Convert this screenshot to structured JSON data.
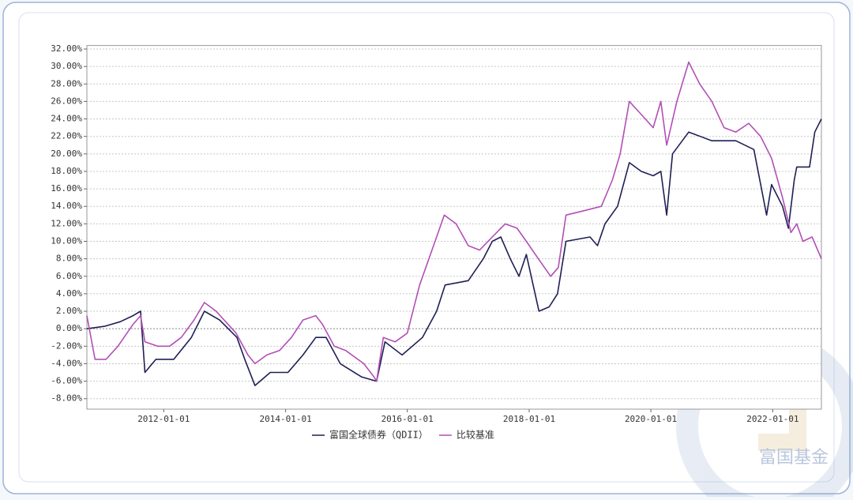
{
  "chart_data": {
    "type": "line",
    "legend": "bottom",
    "grid": true,
    "watermark": "富国基金",
    "xlim": [
      "2010-09-27",
      "2022-10-20"
    ],
    "xticks": [
      "2012-01-01",
      "2014-01-01",
      "2016-01-01",
      "2018-01-01",
      "2020-01-01",
      "2022-01-01"
    ],
    "ylim": [
      -9.2,
      32.4
    ],
    "yticks": [
      {
        "value": -8,
        "label": "-8.00%"
      },
      {
        "value": -6,
        "label": "-6.00%"
      },
      {
        "value": -4,
        "label": "-4.00%"
      },
      {
        "value": -2,
        "label": "-2.00%"
      },
      {
        "value": 0,
        "label": "0.00%"
      },
      {
        "value": 2,
        "label": "2.00%"
      },
      {
        "value": 4,
        "label": "4.00%"
      },
      {
        "value": 6,
        "label": "6.00%"
      },
      {
        "value": 8,
        "label": "8.00%"
      },
      {
        "value": 10,
        "label": "10.00%"
      },
      {
        "value": 12,
        "label": "12.00%"
      },
      {
        "value": 14,
        "label": "14.00%"
      },
      {
        "value": 16,
        "label": "16.00%"
      },
      {
        "value": 18,
        "label": "18.00%"
      },
      {
        "value": 20,
        "label": "20.00%"
      },
      {
        "value": 22,
        "label": "22.00%"
      },
      {
        "value": 24,
        "label": "24.00%"
      },
      {
        "value": 26,
        "label": "26.00%"
      },
      {
        "value": 28,
        "label": "28.00%"
      },
      {
        "value": 30,
        "label": "30.00%"
      },
      {
        "value": 32,
        "label": "32.00%"
      }
    ],
    "series": [
      {
        "name": "富国全球债券（QDII）",
        "color": "#1f1f55",
        "x": [
          "2010-09-27",
          "2011-01-15",
          "2011-04-15",
          "2011-07-01",
          "2011-08-15",
          "2011-09-10",
          "2011-11-15",
          "2012-03-01",
          "2012-06-15",
          "2012-09-01",
          "2012-12-01",
          "2013-03-15",
          "2013-05-01",
          "2013-07-01",
          "2013-10-01",
          "2014-01-15",
          "2014-04-15",
          "2014-07-01",
          "2014-09-01",
          "2014-11-25",
          "2015-04-01",
          "2015-07-01",
          "2015-08-20",
          "2015-12-01",
          "2016-04-01",
          "2016-06-25",
          "2016-08-15",
          "2017-01-01",
          "2017-04-01",
          "2017-05-25",
          "2017-07-15",
          "2017-09-10",
          "2017-11-01",
          "2017-12-15",
          "2018-03-01",
          "2018-05-01",
          "2018-06-20",
          "2018-08-10",
          "2019-01-01",
          "2019-02-15",
          "2019-04-01",
          "2019-06-15",
          "2019-08-25",
          "2019-11-05",
          "2020-01-15",
          "2020-03-01",
          "2020-04-05",
          "2020-05-10",
          "2020-08-15",
          "2021-01-01",
          "2021-05-25",
          "2021-09-10",
          "2021-11-25",
          "2021-12-25",
          "2022-03-01",
          "2022-04-05",
          "2022-05-10",
          "2022-05-25",
          "2022-08-10",
          "2022-09-10",
          "2022-10-20"
        ],
        "values": [
          0,
          0.3,
          0.8,
          1.5,
          2,
          -5,
          -3.5,
          -3.5,
          -1,
          2,
          1,
          -1,
          -3.5,
          -6.5,
          -5,
          -5,
          -3,
          -1,
          -1,
          -4,
          -5.5,
          -6,
          -1.5,
          -3,
          -1,
          2,
          5,
          5.5,
          8,
          10,
          10.5,
          8,
          6,
          8.5,
          2,
          2.5,
          4,
          10,
          10.5,
          9.5,
          12,
          14,
          19,
          18,
          17.5,
          18,
          13,
          20,
          22.5,
          21.5,
          21.5,
          20.5,
          13,
          16.5,
          14,
          11.5,
          17,
          18.5,
          18.5,
          22.5,
          24
        ]
      },
      {
        "name": "比较基准",
        "color": "#b24fb6",
        "x": [
          "2010-09-27",
          "2010-11-15",
          "2011-01-20",
          "2011-04-01",
          "2011-07-01",
          "2011-08-15",
          "2011-09-10",
          "2011-11-25",
          "2012-02-05",
          "2012-04-15",
          "2012-07-01",
          "2012-09-01",
          "2012-11-10",
          "2013-03-10",
          "2013-05-20",
          "2013-07-01",
          "2013-09-10",
          "2013-11-25",
          "2014-02-05",
          "2014-04-15",
          "2014-07-01",
          "2014-08-10",
          "2014-10-20",
          "2014-12-28",
          "2015-04-15",
          "2015-06-15",
          "2015-07-01",
          "2015-08-10",
          "2015-10-20",
          "2016-01-01",
          "2016-03-15",
          "2016-06-25",
          "2016-08-10",
          "2016-10-20",
          "2017-01-01",
          "2017-03-10",
          "2017-05-25",
          "2017-08-10",
          "2017-10-20",
          "2017-12-15",
          "2018-02-25",
          "2018-05-10",
          "2018-06-25",
          "2018-08-10",
          "2018-11-25",
          "2019-03-10",
          "2019-05-15",
          "2019-07-01",
          "2019-08-25",
          "2019-11-05",
          "2020-01-15",
          "2020-03-01",
          "2020-04-05",
          "2020-06-05",
          "2020-08-15",
          "2020-10-20",
          "2021-01-01",
          "2021-03-15",
          "2021-05-25",
          "2021-08-10",
          "2021-10-20",
          "2021-12-25",
          "2022-03-01",
          "2022-04-20",
          "2022-05-25",
          "2022-07-01",
          "2022-08-25",
          "2022-10-20"
        ],
        "values": [
          1.5,
          -3.5,
          -3.5,
          -2,
          0.5,
          1.5,
          -1.5,
          -2,
          -2,
          -1,
          1,
          3,
          2,
          -0.5,
          -3,
          -4,
          -3,
          -2.5,
          -1,
          1,
          1.5,
          0.5,
          -2,
          -2.5,
          -4,
          -5.5,
          -6,
          -1,
          -1.5,
          -0.5,
          5,
          10.5,
          13,
          12,
          9.5,
          9,
          10.5,
          12,
          11.5,
          10,
          8,
          6,
          7,
          13,
          13.5,
          14,
          17,
          20,
          26,
          24.5,
          23,
          26,
          21,
          26,
          30.5,
          28,
          26,
          23,
          22.5,
          23.5,
          22,
          19.5,
          15,
          11,
          12,
          10,
          10.5,
          8
        ]
      }
    ]
  }
}
